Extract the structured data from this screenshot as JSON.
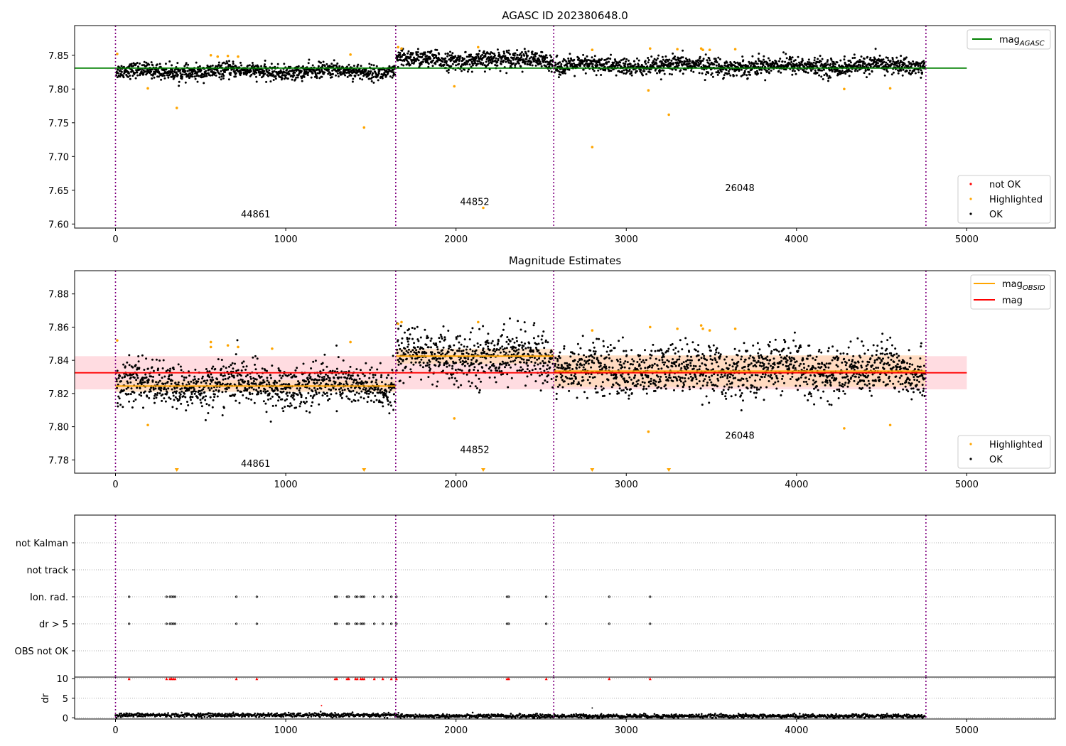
{
  "figure": {
    "background": "#ffffff"
  },
  "colors": {
    "ok": "#000000",
    "highlighted": "#ffa500",
    "not_ok": "#ff0000",
    "agasc": "#008000",
    "mean": "#ff0000",
    "obsid": "#ffa500",
    "band": "#ffc0c8",
    "obsid_band": "#ffd9b3",
    "boundary": "#800080"
  },
  "chart_data": [
    {
      "id": "agasc",
      "type": "scatter",
      "title": "AGASC ID 202380648.0",
      "xlim": [
        -240,
        5520
      ],
      "ylim": [
        7.594,
        7.894
      ],
      "xticks": [
        0,
        1000,
        2000,
        3000,
        4000,
        5000
      ],
      "yticks": [
        7.6,
        7.65,
        7.7,
        7.75,
        7.8,
        7.85
      ],
      "ytick_labels": [
        "7.60",
        "7.65",
        "7.70",
        "7.75",
        "7.80",
        "7.85"
      ],
      "boundaries": [
        0,
        1646,
        2574,
        4760
      ],
      "obsids": [
        {
          "label": "44861",
          "x": 823,
          "y": 7.61
        },
        {
          "label": "44852",
          "x": 2110,
          "y": 7.628
        },
        {
          "label": "26048",
          "x": 3667,
          "y": 7.649
        }
      ],
      "agasc_line": {
        "value": 7.831,
        "x": [
          -240,
          5000
        ]
      },
      "segments": [
        {
          "x0": 0,
          "x1": 1646,
          "mean": 7.826,
          "sd": 0.0055
        },
        {
          "x0": 1646,
          "x1": 2574,
          "mean": 7.843,
          "sd": 0.0065
        },
        {
          "x0": 2574,
          "x1": 4760,
          "mean": 7.834,
          "sd": 0.0065
        }
      ],
      "highlighted": [
        [
          10,
          7.852
        ],
        [
          190,
          7.801
        ],
        [
          360,
          7.772
        ],
        [
          560,
          7.85
        ],
        [
          600,
          7.848
        ],
        [
          660,
          7.849
        ],
        [
          720,
          7.848
        ],
        [
          1380,
          7.851
        ],
        [
          1460,
          7.743
        ],
        [
          1660,
          7.862
        ],
        [
          1680,
          7.86
        ],
        [
          1990,
          7.804
        ],
        [
          2130,
          7.862
        ],
        [
          2160,
          7.624
        ],
        [
          2800,
          7.858
        ],
        [
          2800,
          7.714
        ],
        [
          3130,
          7.798
        ],
        [
          3140,
          7.86
        ],
        [
          3250,
          7.762
        ],
        [
          3300,
          7.859
        ],
        [
          3440,
          7.86
        ],
        [
          3450,
          7.858
        ],
        [
          3490,
          7.858
        ],
        [
          3640,
          7.859
        ],
        [
          4280,
          7.8
        ],
        [
          4550,
          7.801
        ]
      ],
      "legend_items": [
        {
          "label": "mag",
          "sub": "AGASC"
        }
      ],
      "legend2_items": [
        {
          "label": "not OK"
        },
        {
          "label": "Highlighted"
        },
        {
          "label": "OK"
        }
      ]
    },
    {
      "id": "estimates",
      "type": "scatter",
      "title": "Magnitude Estimates",
      "xlim": [
        -240,
        5520
      ],
      "ylim": [
        7.772,
        7.894
      ],
      "xticks": [
        0,
        1000,
        2000,
        3000,
        4000,
        5000
      ],
      "yticks": [
        7.78,
        7.8,
        7.82,
        7.84,
        7.86,
        7.88
      ],
      "ytick_labels": [
        "7.78",
        "7.80",
        "7.82",
        "7.84",
        "7.86",
        "7.88"
      ],
      "boundaries": [
        0,
        1646,
        2574,
        4760
      ],
      "obsids": [
        {
          "label": "44861",
          "x": 823,
          "y": 7.7758
        },
        {
          "label": "44852",
          "x": 2110,
          "y": 7.7843
        },
        {
          "label": "26048",
          "x": 3667,
          "y": 7.7928
        }
      ],
      "mag_line": {
        "value": 7.8325,
        "band": [
          7.8225,
          7.8425
        ],
        "x": [
          -240,
          5000
        ]
      },
      "obsid_lines": [
        {
          "x0": 0,
          "x1": 1646,
          "value": 7.8245,
          "band": [
            7.821,
            7.828
          ]
        },
        {
          "x0": 1646,
          "x1": 2574,
          "value": 7.8425,
          "band": [
            7.838,
            7.847
          ]
        },
        {
          "x0": 2574,
          "x1": 4760,
          "value": 7.8335,
          "band": [
            7.824,
            7.843
          ]
        }
      ],
      "segments": [
        {
          "x0": 0,
          "x1": 1646,
          "mean": 7.825,
          "sd": 0.0065
        },
        {
          "x0": 1646,
          "x1": 2574,
          "mean": 7.842,
          "sd": 0.0075
        },
        {
          "x0": 2574,
          "x1": 4760,
          "mean": 7.834,
          "sd": 0.0075
        }
      ],
      "highlighted": [
        [
          10,
          7.852
        ],
        [
          190,
          7.801
        ],
        [
          560,
          7.851
        ],
        [
          560,
          7.848
        ],
        [
          660,
          7.849
        ],
        [
          720,
          7.848
        ],
        [
          920,
          7.847
        ],
        [
          1380,
          7.851
        ],
        [
          1660,
          7.862
        ],
        [
          1680,
          7.863
        ],
        [
          1990,
          7.805
        ],
        [
          2130,
          7.863
        ],
        [
          2800,
          7.858
        ],
        [
          3130,
          7.797
        ],
        [
          3140,
          7.86
        ],
        [
          3300,
          7.859
        ],
        [
          3440,
          7.861
        ],
        [
          3450,
          7.859
        ],
        [
          3490,
          7.858
        ],
        [
          3640,
          7.859
        ],
        [
          4280,
          7.799
        ],
        [
          4550,
          7.801
        ]
      ],
      "off_scale_markers": [
        360,
        1460,
        2160,
        2800,
        3250
      ],
      "legend_items": [
        {
          "label": "mag",
          "sub": "OBSID"
        },
        {
          "label": "mag",
          "sub": ""
        }
      ],
      "legend2_items": [
        {
          "label": "Highlighted"
        },
        {
          "label": "OK"
        }
      ]
    },
    {
      "id": "flags",
      "type": "scatter",
      "xlim": [
        -240,
        5520
      ],
      "categories": [
        "not Kalman",
        "not track",
        "Ion. rad.",
        "dr > 5",
        "OBS not OK"
      ],
      "boundaries": [
        0,
        1646,
        2574,
        4760
      ],
      "flag_times": [
        80,
        300,
        320,
        330,
        340,
        350,
        710,
        830,
        1290,
        1300,
        1360,
        1370,
        1410,
        1420,
        1440,
        1450,
        1460,
        1520,
        1570,
        1620,
        1650,
        2300,
        2310,
        2530,
        2900,
        3140
      ],
      "flag_rows": [
        "Ion. rad.",
        "dr > 5"
      ]
    },
    {
      "id": "dr",
      "type": "scatter",
      "xlim": [
        -240,
        5520
      ],
      "ylim": [
        -0.3,
        10.4
      ],
      "ylabel": "dr",
      "yticks": [
        0,
        5,
        10
      ],
      "ytick_labels": [
        "0",
        "5",
        "10"
      ],
      "xticks": [
        0,
        1000,
        2000,
        3000,
        4000,
        5000
      ],
      "boundaries": [
        0,
        1646,
        2574,
        4760
      ],
      "clip_value": 10,
      "flag_times": [
        80,
        300,
        320,
        330,
        340,
        350,
        710,
        830,
        1290,
        1300,
        1360,
        1370,
        1410,
        1420,
        1440,
        1450,
        1460,
        1520,
        1570,
        1620,
        1650,
        2300,
        2310,
        2530,
        2900,
        3140
      ],
      "outliers": [
        [
          1210,
          3.1
        ],
        [
          2800,
          2.5
        ]
      ],
      "baseline": {
        "mean": 0.5,
        "sd": 0.25
      }
    }
  ]
}
